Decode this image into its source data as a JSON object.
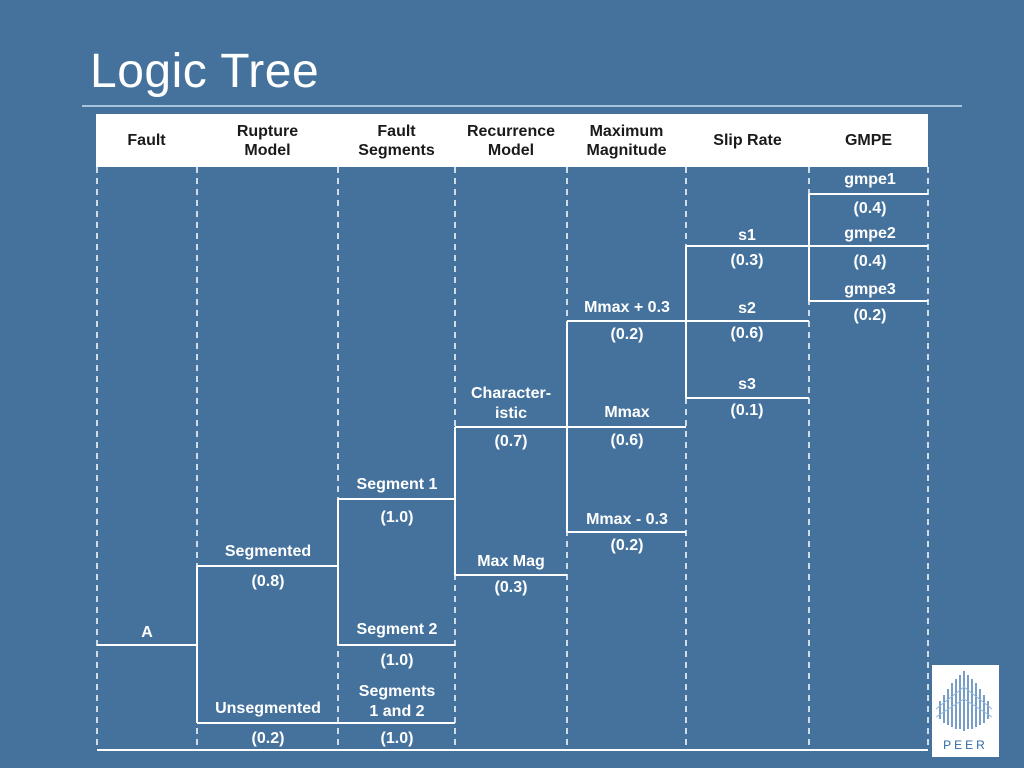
{
  "title": "Logic Tree",
  "headers": {
    "fault": "Fault",
    "rupture_model": "Rupture\nModel",
    "fault_segments": "Fault\nSegments",
    "recurrence_model": "Recurrence\nModel",
    "maximum_magnitude": "Maximum\nMagnitude",
    "slip_rate": "Slip Rate",
    "gmpe": "GMPE"
  },
  "nodes": {
    "fault_a": "A",
    "rupture_segmented": "Segmented",
    "rupture_segmented_w": "(0.8)",
    "rupture_unsegmented": "Unsegmented",
    "rupture_unsegmented_w": "(0.2)",
    "segment_1": "Segment 1",
    "segment_1_w": "(1.0)",
    "segment_2": "Segment 2",
    "segment_2_w": "(1.0)",
    "segments_1_and_2": "Segments\n1 and 2",
    "segments_1_and_2_w": "(1.0)",
    "characteristic": "Character-\nistic",
    "characteristic_w": "(0.7)",
    "max_mag": "Max Mag",
    "max_mag_w": "(0.3)",
    "mmax_plus": "Mmax + 0.3",
    "mmax_plus_w": "(0.2)",
    "mmax": "Mmax",
    "mmax_w": "(0.6)",
    "mmax_minus": "Mmax - 0.3",
    "mmax_minus_w": "(0.2)",
    "s1": "s1",
    "s1_w": "(0.3)",
    "s2": "s2",
    "s2_w": "(0.6)",
    "s3": "s3",
    "s3_w": "(0.1)",
    "gmpe1": "gmpe1",
    "gmpe1_w": "(0.4)",
    "gmpe2": "gmpe2",
    "gmpe2_w": "(0.4)",
    "gmpe3": "gmpe3",
    "gmpe3_w": "(0.2)"
  },
  "logo": {
    "text": "PEER"
  },
  "colors": {
    "background": "#44729c",
    "lines": "#ffffff",
    "header_bg": "#ffffff",
    "logo_text": "#2e6aa8"
  }
}
